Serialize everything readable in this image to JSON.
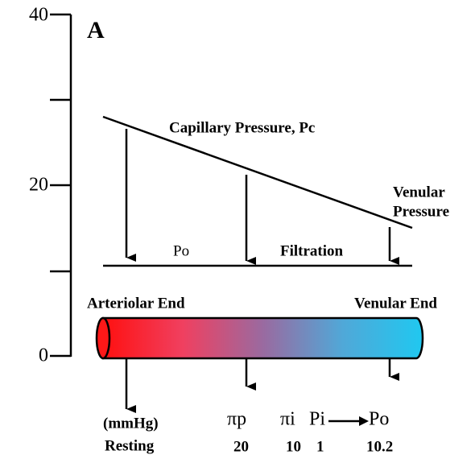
{
  "axis": {
    "ticks": [
      "40",
      "20",
      "0"
    ]
  },
  "panel_label": "A",
  "labels": {
    "capillary_pressure": "Capillary Pressure, Pc",
    "venular_pressure": [
      "Venular",
      "Pressure"
    ],
    "po": "Po",
    "filtration": "Filtration",
    "arteriolar_end": "Arteriolar End",
    "venular_end": "Venular End"
  },
  "table": {
    "unit": "(mmHg)",
    "row_label": "Resting",
    "headers": [
      "πp",
      "πi",
      "Pi",
      "Po"
    ],
    "values": [
      "20",
      "10",
      "1",
      "10.2"
    ]
  }
}
